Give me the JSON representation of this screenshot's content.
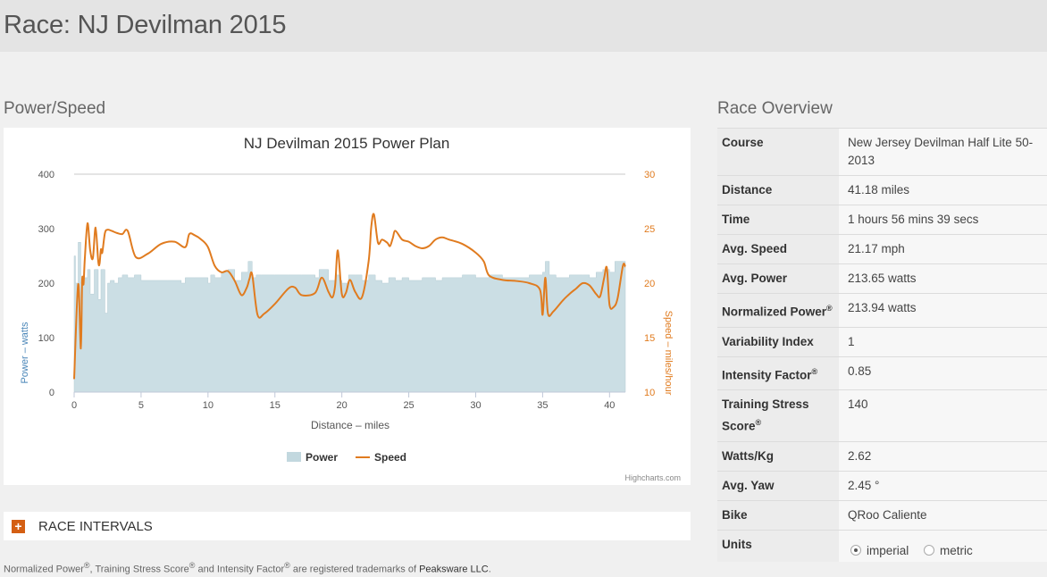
{
  "page": {
    "title": "Race: NJ Devilman 2015"
  },
  "power_speed": {
    "title": "Power/Speed"
  },
  "chart_data": {
    "type": "area+line",
    "title": "NJ Devilman 2015 Power Plan",
    "xlabel": "Distance – miles",
    "ylabel_left": "Power – watts",
    "ylabel_right": "Speed – miles/hour",
    "xlim": [
      0,
      41.18
    ],
    "ylim_left": [
      0,
      400
    ],
    "ylim_right": [
      10,
      30
    ],
    "x_ticks": [
      "0",
      "5",
      "10",
      "15",
      "20",
      "25",
      "30",
      "35",
      "40"
    ],
    "y_ticks_left": [
      "0",
      "100",
      "200",
      "300",
      "400"
    ],
    "y_ticks_right": [
      "10",
      "15",
      "20",
      "25",
      "30"
    ],
    "legend_position": "bottom-center",
    "credit": "Highcharts.com",
    "colors": {
      "power": "#c2d8df",
      "speed": "#e07b1f"
    },
    "series": [
      {
        "name": "Power",
        "axis": "left",
        "type": "area-step",
        "x": [
          0,
          0.1,
          0.3,
          0.5,
          0.8,
          1.0,
          1.2,
          1.5,
          1.8,
          2.0,
          2.3,
          2.5,
          2.7,
          3.0,
          3.3,
          3.6,
          4.0,
          4.5,
          5.0,
          7.0,
          8.0,
          8.3,
          9.0,
          10.0,
          10.2,
          10.5,
          11.0,
          11.5,
          12.0,
          12.5,
          13.0,
          13.3,
          13.6,
          14.0,
          15.0,
          16.0,
          17.0,
          18.0,
          18.3,
          19.0,
          19.5,
          19.8,
          20.0,
          20.5,
          21.0,
          21.5,
          22.0,
          22.5,
          23.0,
          23.5,
          24.0,
          24.5,
          25.0,
          26.0,
          27.0,
          27.5,
          28.0,
          29.0,
          30.0,
          31.0,
          32.0,
          33.0,
          34.0,
          35.0,
          35.2,
          35.5,
          36.0,
          37.0,
          38.0,
          38.5,
          39.0,
          39.5,
          40.0,
          40.4,
          41.18
        ],
        "values": [
          250,
          200,
          275,
          200,
          210,
          225,
          180,
          225,
          170,
          225,
          145,
          200,
          205,
          200,
          210,
          215,
          210,
          215,
          205,
          205,
          200,
          210,
          210,
          200,
          215,
          210,
          220,
          225,
          205,
          220,
          240,
          210,
          215,
          215,
          215,
          215,
          215,
          210,
          225,
          205,
          215,
          205,
          200,
          215,
          215,
          205,
          215,
          205,
          200,
          210,
          205,
          210,
          205,
          210,
          205,
          210,
          210,
          215,
          210,
          215,
          210,
          210,
          215,
          220,
          240,
          215,
          210,
          215,
          215,
          210,
          220,
          225,
          220,
          240,
          215
        ]
      },
      {
        "name": "Speed",
        "axis": "right",
        "type": "spline",
        "x": [
          0,
          0.3,
          0.5,
          0.6,
          0.7,
          0.8,
          1.0,
          1.2,
          1.4,
          1.6,
          1.8,
          1.9,
          2.0,
          2.1,
          2.3,
          2.5,
          2.8,
          3.2,
          3.6,
          4.0,
          4.6,
          5.5,
          6.5,
          7.5,
          8.3,
          8.6,
          9.0,
          9.5,
          10.0,
          10.5,
          11.0,
          11.5,
          12.0,
          12.5,
          12.9,
          13.1,
          13.3,
          13.7,
          14.2,
          15.0,
          16.0,
          16.5,
          17.0,
          18.0,
          18.5,
          19.0,
          19.3,
          19.5,
          19.7,
          20.0,
          20.3,
          20.6,
          21.0,
          21.5,
          22.0,
          22.2,
          22.4,
          22.7,
          23.0,
          23.4,
          23.6,
          23.8,
          24.0,
          24.5,
          25.0,
          25.5,
          26.0,
          26.5,
          27.0,
          27.5,
          28.0,
          29.0,
          30.0,
          30.6,
          31.0,
          32.0,
          33.0,
          34.0,
          34.8,
          35.0,
          35.2,
          35.4,
          35.8,
          36.5,
          37.0,
          37.5,
          38.0,
          38.5,
          39.0,
          39.3,
          39.6,
          39.8,
          40.0,
          40.3,
          40.6,
          41.0,
          41.18
        ],
        "values": [
          11.2,
          19.9,
          14,
          20.3,
          19.9,
          22.3,
          25.5,
          23.0,
          22.3,
          25.1,
          22.0,
          21.8,
          23.1,
          22.8,
          24.6,
          24.9,
          24.8,
          24.6,
          24.5,
          24.8,
          22.4,
          22.7,
          23.6,
          23.8,
          23.3,
          24.5,
          24.4,
          24.0,
          23.3,
          21.6,
          21.0,
          21.1,
          20.2,
          18.9,
          19.6,
          20.4,
          20.8,
          17.1,
          17.2,
          18.1,
          19.5,
          19.6,
          18.9,
          19.1,
          20.5,
          19.2,
          18.7,
          19.8,
          23.0,
          19.0,
          19.1,
          20.3,
          19.2,
          18.7,
          22.0,
          25.2,
          26.3,
          23.7,
          24.0,
          23.7,
          23.4,
          24.1,
          24.8,
          24.0,
          23.8,
          23.4,
          23.2,
          23.4,
          24.0,
          24.2,
          24.0,
          23.6,
          22.8,
          22.0,
          20.7,
          20.3,
          20.2,
          20.0,
          19.4,
          17.1,
          20.5,
          17.2,
          17.4,
          18.4,
          19.0,
          19.5,
          20.0,
          19.8,
          19.0,
          18.8,
          20.5,
          21.4,
          18.0,
          17.8,
          18.6,
          21.6,
          21.5
        ]
      }
    ]
  },
  "overview": {
    "title": "Race Overview",
    "rows": {
      "course": {
        "label": "Course",
        "value": "New Jersey Devilman Half Lite 50-2013"
      },
      "distance": {
        "label": "Distance",
        "value": "41.18 miles"
      },
      "time": {
        "label": "Time",
        "value": "1 hours 56 mins 39 secs"
      },
      "avg_speed": {
        "label": "Avg. Speed",
        "value": "21.17 mph"
      },
      "avg_power": {
        "label": "Avg. Power",
        "value": "213.65 watts"
      },
      "np": {
        "label": "Normalized Power",
        "value": "213.94 watts"
      },
      "vi": {
        "label": "Variability Index",
        "value": "1"
      },
      "if": {
        "label": "Intensity Factor",
        "value": "0.85"
      },
      "tss": {
        "label": "Training Stress Score",
        "value": "140"
      },
      "wkg": {
        "label": "Watts/Kg",
        "value": "2.62"
      },
      "yaw": {
        "label": "Avg. Yaw",
        "value": "2.45 °"
      },
      "bike": {
        "label": "Bike",
        "value": "QRoo Caliente"
      },
      "units": {
        "label": "Units",
        "options": [
          "imperial",
          "metric"
        ],
        "selected": "imperial"
      }
    },
    "registered_mark": "®"
  },
  "intervals": {
    "label": "RACE INTERVALS",
    "toggle_icon": "+"
  },
  "footer": {
    "np": "Normalized Power",
    "tss": "Training Stress Score",
    "and": "and",
    "if": "Intensity Factor",
    "tail": "are registered trademarks of",
    "company": "Peaksware LLC",
    "end": "."
  }
}
